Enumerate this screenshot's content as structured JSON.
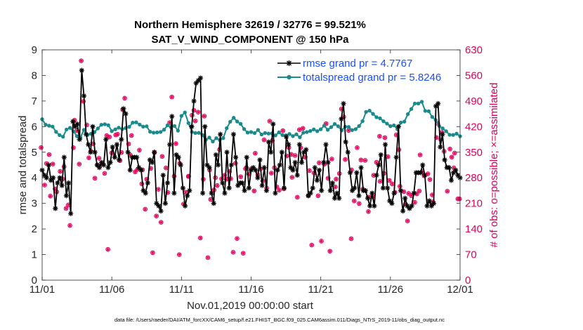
{
  "chart_data": {
    "type": "line",
    "title": "Northern Hemisphere 32619 / 32776 = 99.521%",
    "subtitle": "SAT_V_WIND_COMPONENT @ 150 hPa",
    "xlabel": "Nov.01,2019 00:00:00 start",
    "ylabel_left": "rmse and totalspread",
    "ylabel_right": "# of obs: o=possible; ×=assimilated",
    "xlim": [
      0,
      30
    ],
    "ylim_left": [
      0,
      9
    ],
    "ylim_right": [
      0,
      630
    ],
    "x_ticks": [
      0,
      5,
      10,
      15,
      20,
      25,
      30
    ],
    "x_tick_labels": [
      "11/01",
      "11/06",
      "11/11",
      "11/16",
      "11/21",
      "11/26",
      "12/01"
    ],
    "y_ticks_left": [
      "0",
      "1",
      "2",
      "3",
      "4",
      "5",
      "6",
      "7",
      "8",
      "9"
    ],
    "y_ticks_right": [
      "0",
      "70",
      "140",
      "210",
      "280",
      "350",
      "420",
      "490",
      "560",
      "630"
    ],
    "legend": [
      {
        "label": "rmse grand pr = 4.7767",
        "color": "#000000",
        "marker": "asterisk"
      },
      {
        "label": "totalspread grand pr = 5.8246",
        "color": "#1a8a8c",
        "marker": "circle"
      }
    ],
    "colors": {
      "rmse": "#000000",
      "totalspread": "#1a8a8c",
      "obs": "#e0005a",
      "right_axis": "#e0005a"
    },
    "rmse": [
      4.3,
      4.1,
      4.0,
      4.5,
      3.9,
      4.0,
      2.8,
      3.8,
      4.0,
      3.7,
      4.8,
      3.3,
      3.8,
      2.6,
      6.2,
      6.0,
      6.1,
      5.5,
      8.2,
      7.2,
      5.7,
      5.3,
      5.0,
      6.0,
      5.0,
      4.5,
      4.4,
      4.6,
      4.5,
      5.5,
      4.4,
      4.6,
      5.2,
      4.8,
      5.3,
      4.7,
      5.5,
      6.7,
      6.5,
      5.0,
      4.3,
      4.8,
      4.8,
      4.8,
      4.4,
      4.3,
      3.5,
      3.4,
      3.8,
      4.7,
      4.6,
      5.0,
      3.0,
      2.9,
      2.7,
      4.1,
      3.0,
      3.8,
      5.3,
      6.4,
      3.4,
      4.9,
      4.8,
      4.5,
      3.6,
      2.9,
      3.3,
      3.5,
      6.0,
      7.0,
      7.7,
      7.8,
      7.9,
      3.4,
      6.0,
      4.5,
      4.4,
      3.4,
      3.0,
      4.9,
      4.5,
      5.7,
      3.8,
      3.4,
      5.0,
      3.6,
      4.5,
      5.7,
      4.8,
      3.7,
      3.8,
      3.8,
      3.5,
      4.8,
      3.6,
      4.3,
      4.4,
      4.3,
      4.0,
      4.7,
      3.7,
      4.4,
      3.5,
      5.4,
      5.0,
      6.1,
      3.4,
      4.3,
      4.5,
      5.0,
      3.6,
      5.6,
      5.3,
      4.4,
      4.3,
      4.6,
      4.1,
      5.3,
      4.6,
      5.0,
      5.1,
      3.3,
      3.4,
      3.6,
      4.4,
      3.9,
      4.3,
      3.5,
      4.6,
      5.3,
      4.6,
      3.5,
      3.8,
      3.2,
      3.4,
      3.2,
      6.3,
      6.9,
      5.4,
      5.0,
      4.2,
      3.5,
      3.6,
      4.2,
      3.3,
      4.4,
      3.5,
      3.5,
      3.2,
      2.9,
      3.4,
      2.9,
      4.1,
      4.5,
      4.9,
      3.6,
      5.3,
      3.6,
      3.1,
      3.0,
      3.4,
      4.8,
      6.0,
      3.5,
      2.7,
      3.2,
      2.9,
      2.8,
      2.9,
      3.4,
      4.2,
      4.2,
      4.2,
      4.5,
      4.1,
      2.9,
      3.1,
      2.9,
      3.0,
      6.8,
      6.9,
      5.2,
      5.7,
      4.7,
      4.4,
      4.4,
      3.9,
      4.2,
      4.3,
      4.1,
      4.0
    ]
  }
}
